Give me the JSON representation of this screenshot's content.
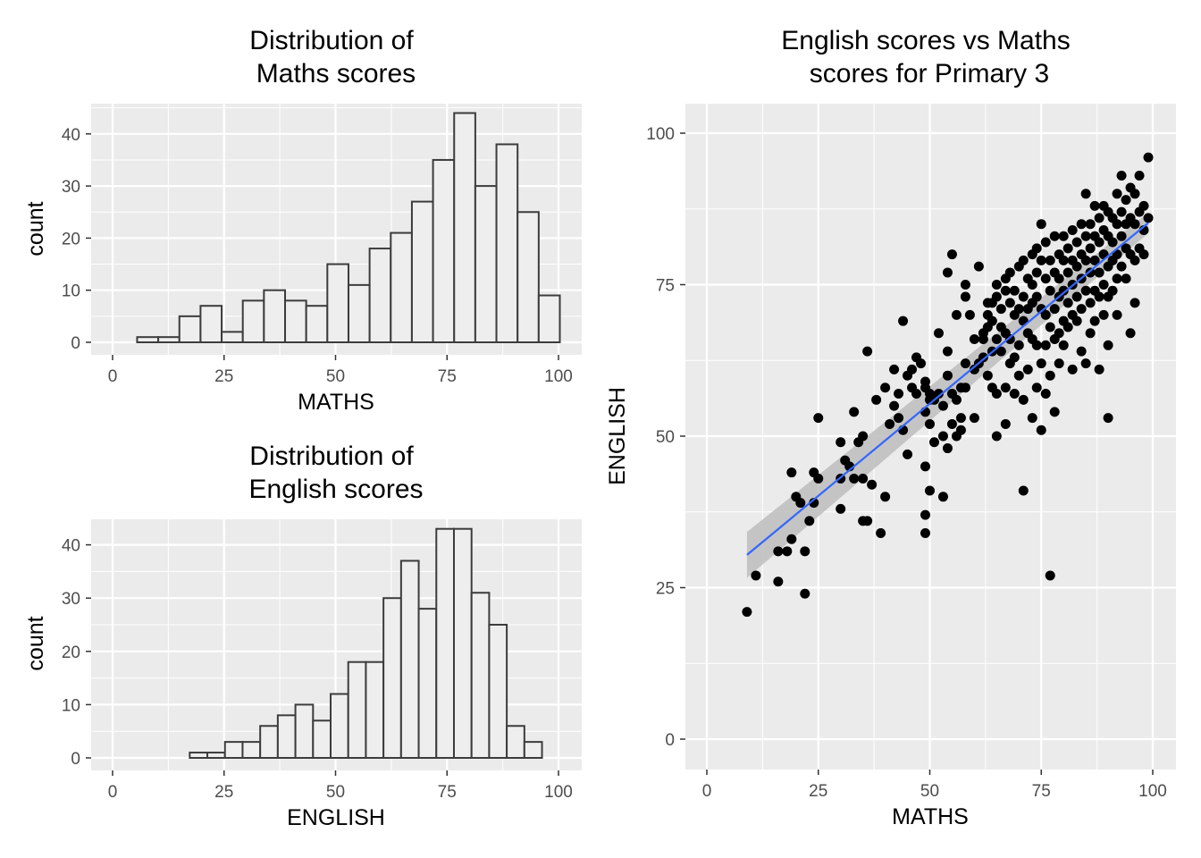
{
  "chart_data": [
    {
      "id": "maths-hist",
      "type": "bar",
      "title": [
        "Distribution of",
        "Maths scores"
      ],
      "xlabel": "MATHS",
      "ylabel": "count",
      "xlim": [
        0,
        100
      ],
      "ylim": [
        0,
        45
      ],
      "xticks": [
        0,
        25,
        50,
        75,
        100
      ],
      "yticks": [
        0,
        10,
        20,
        30,
        40
      ],
      "bin_width": 4.74,
      "bin_start": 5.5,
      "values": [
        1,
        1,
        5,
        7,
        2,
        8,
        10,
        8,
        7,
        15,
        11,
        18,
        21,
        27,
        35,
        44,
        30,
        38,
        25,
        9
      ],
      "fill": "#eeeeee",
      "stroke": "#3c3c3c"
    },
    {
      "id": "english-hist",
      "type": "bar",
      "title": [
        "Distribution of",
        "English scores"
      ],
      "xlabel": "ENGLISH",
      "ylabel": "count",
      "xlim": [
        0,
        100
      ],
      "ylim": [
        0,
        45
      ],
      "xticks": [
        0,
        25,
        50,
        75,
        100
      ],
      "yticks": [
        0,
        10,
        20,
        30,
        40
      ],
      "bin_width": 3.95,
      "bin_start": 17.3,
      "values": [
        1,
        1,
        3,
        3,
        6,
        8,
        10,
        7,
        12,
        18,
        18,
        30,
        37,
        28,
        43,
        43,
        31,
        25,
        6,
        3
      ],
      "fill": "#eeeeee",
      "stroke": "#3c3c3c"
    },
    {
      "id": "scatter",
      "type": "scatter",
      "title": [
        "English scores vs Maths",
        "scores for Primary 3"
      ],
      "xlabel": "MATHS",
      "ylabel": "ENGLISH",
      "xlim": [
        0,
        100
      ],
      "ylim": [
        0,
        100
      ],
      "xticks": [
        0,
        25,
        50,
        75,
        100
      ],
      "yticks": [
        0,
        25,
        50,
        75,
        100
      ],
      "point_color": "#000000",
      "trend": {
        "x": [
          9,
          99
        ],
        "y": [
          30.4,
          85.2
        ],
        "se_low": [
          26.6,
          83.5
        ],
        "se_high": [
          34.2,
          86.9
        ],
        "color": "#3366ff",
        "band": "#bdbdbd"
      },
      "points": [
        [
          9,
          21
        ],
        [
          11,
          27
        ],
        [
          16,
          26
        ],
        [
          16,
          31
        ],
        [
          18,
          31
        ],
        [
          19,
          44
        ],
        [
          20,
          40
        ],
        [
          21,
          39
        ],
        [
          19,
          33
        ],
        [
          22,
          24
        ],
        [
          22,
          31
        ],
        [
          23,
          36
        ],
        [
          24,
          39
        ],
        [
          24,
          44
        ],
        [
          25,
          43
        ],
        [
          25,
          53
        ],
        [
          30,
          49
        ],
        [
          30,
          43
        ],
        [
          30,
          38
        ],
        [
          31,
          46
        ],
        [
          32,
          45
        ],
        [
          33,
          43
        ],
        [
          33,
          54
        ],
        [
          34,
          49
        ],
        [
          35,
          50
        ],
        [
          35,
          43
        ],
        [
          35,
          36
        ],
        [
          36,
          36
        ],
        [
          36,
          64
        ],
        [
          37,
          42
        ],
        [
          38,
          56
        ],
        [
          39,
          34
        ],
        [
          40,
          40
        ],
        [
          40,
          58
        ],
        [
          41,
          52
        ],
        [
          42,
          55
        ],
        [
          42,
          61
        ],
        [
          43,
          53
        ],
        [
          43,
          57
        ],
        [
          44,
          69
        ],
        [
          44,
          51
        ],
        [
          45,
          47
        ],
        [
          45,
          60
        ],
        [
          46,
          58
        ],
        [
          46,
          61
        ],
        [
          47,
          57
        ],
        [
          47,
          63
        ],
        [
          48,
          62
        ],
        [
          49,
          59
        ],
        [
          49,
          54
        ],
        [
          49,
          58
        ],
        [
          50,
          57
        ],
        [
          50,
          52
        ],
        [
          50,
          56
        ],
        [
          49,
          45
        ],
        [
          49,
          37
        ],
        [
          50,
          41
        ],
        [
          49,
          34
        ],
        [
          51,
          56
        ],
        [
          51,
          49
        ],
        [
          52,
          57
        ],
        [
          52,
          67
        ],
        [
          53,
          50
        ],
        [
          53,
          40
        ],
        [
          53,
          55
        ],
        [
          54,
          77
        ],
        [
          54,
          64
        ],
        [
          54,
          60
        ],
        [
          54,
          48
        ],
        [
          55,
          57
        ],
        [
          55,
          52
        ],
        [
          55,
          80
        ],
        [
          56,
          70
        ],
        [
          56,
          56
        ],
        [
          56,
          50
        ],
        [
          57,
          58
        ],
        [
          57,
          53
        ],
        [
          57,
          51
        ],
        [
          58,
          75
        ],
        [
          58,
          62
        ],
        [
          58,
          58
        ],
        [
          58,
          73
        ],
        [
          59,
          70
        ],
        [
          60,
          66
        ],
        [
          60,
          61
        ],
        [
          60,
          53
        ],
        [
          61,
          62
        ],
        [
          61,
          78
        ],
        [
          62,
          67
        ],
        [
          62,
          66
        ],
        [
          62,
          63
        ],
        [
          63,
          68
        ],
        [
          63,
          72
        ],
        [
          63,
          70
        ],
        [
          63,
          60
        ],
        [
          64,
          72
        ],
        [
          64,
          69
        ],
        [
          64,
          64
        ],
        [
          64,
          58
        ],
        [
          65,
          75
        ],
        [
          65,
          73
        ],
        [
          65,
          66
        ],
        [
          65,
          57
        ],
        [
          65,
          50
        ],
        [
          66,
          71
        ],
        [
          66,
          68
        ],
        [
          66,
          64
        ],
        [
          67,
          76
        ],
        [
          67,
          74
        ],
        [
          67,
          67
        ],
        [
          67,
          58
        ],
        [
          67,
          52
        ],
        [
          68,
          77
        ],
        [
          68,
          72
        ],
        [
          68,
          66
        ],
        [
          68,
          62
        ],
        [
          69,
          74
        ],
        [
          69,
          70
        ],
        [
          69,
          63
        ],
        [
          69,
          57
        ],
        [
          70,
          78
        ],
        [
          70,
          71
        ],
        [
          70,
          65
        ],
        [
          70,
          60
        ],
        [
          71,
          79
        ],
        [
          71,
          73
        ],
        [
          71,
          69
        ],
        [
          71,
          41
        ],
        [
          71,
          56
        ],
        [
          72,
          76
        ],
        [
          72,
          71
        ],
        [
          72,
          67
        ],
        [
          72,
          61
        ],
        [
          73,
          80
        ],
        [
          73,
          75
        ],
        [
          73,
          72
        ],
        [
          73,
          66
        ],
        [
          73,
          53
        ],
        [
          74,
          81
        ],
        [
          74,
          77
        ],
        [
          74,
          73
        ],
        [
          74,
          65
        ],
        [
          74,
          58
        ],
        [
          75,
          85
        ],
        [
          75,
          79
        ],
        [
          75,
          71
        ],
        [
          75,
          62
        ],
        [
          75,
          51
        ],
        [
          76,
          82
        ],
        [
          76,
          76
        ],
        [
          76,
          70
        ],
        [
          76,
          65
        ],
        [
          76,
          57
        ],
        [
          77,
          79
        ],
        [
          77,
          74
        ],
        [
          77,
          68
        ],
        [
          77,
          60
        ],
        [
          77,
          27
        ],
        [
          78,
          83
        ],
        [
          78,
          77
        ],
        [
          78,
          71
        ],
        [
          78,
          66
        ],
        [
          78,
          54
        ],
        [
          79,
          80
        ],
        [
          79,
          76
        ],
        [
          79,
          73
        ],
        [
          79,
          67
        ],
        [
          79,
          62
        ],
        [
          80,
          83
        ],
        [
          80,
          79
        ],
        [
          80,
          74
        ],
        [
          80,
          69
        ],
        [
          80,
          65
        ],
        [
          81,
          81
        ],
        [
          81,
          77
        ],
        [
          81,
          72
        ],
        [
          81,
          68
        ],
        [
          82,
          84
        ],
        [
          82,
          79
        ],
        [
          82,
          75
        ],
        [
          82,
          70
        ],
        [
          82,
          61
        ],
        [
          83,
          82
        ],
        [
          83,
          78
        ],
        [
          83,
          73
        ],
        [
          83,
          69
        ],
        [
          84,
          85
        ],
        [
          84,
          80
        ],
        [
          84,
          76
        ],
        [
          84,
          71
        ],
        [
          84,
          64
        ],
        [
          85,
          90
        ],
        [
          85,
          83
        ],
        [
          85,
          79
        ],
        [
          85,
          74
        ],
        [
          85,
          62
        ],
        [
          86,
          85
        ],
        [
          86,
          81
        ],
        [
          86,
          77
        ],
        [
          86,
          72
        ],
        [
          86,
          67
        ],
        [
          87,
          88
        ],
        [
          87,
          83
        ],
        [
          87,
          79
        ],
        [
          87,
          74
        ],
        [
          87,
          69
        ],
        [
          88,
          86
        ],
        [
          88,
          82
        ],
        [
          88,
          77
        ],
        [
          88,
          73
        ],
        [
          88,
          61
        ],
        [
          89,
          88
        ],
        [
          89,
          84
        ],
        [
          89,
          80
        ],
        [
          89,
          75
        ],
        [
          89,
          70
        ],
        [
          90,
          87
        ],
        [
          90,
          83
        ],
        [
          90,
          78
        ],
        [
          90,
          73
        ],
        [
          90,
          65
        ],
        [
          90,
          53
        ],
        [
          91,
          86
        ],
        [
          91,
          82
        ],
        [
          91,
          79
        ],
        [
          91,
          74
        ],
        [
          92,
          90
        ],
        [
          92,
          85
        ],
        [
          92,
          80
        ],
        [
          92,
          76
        ],
        [
          92,
          70
        ],
        [
          93,
          93
        ],
        [
          93,
          87
        ],
        [
          93,
          83
        ],
        [
          93,
          78
        ],
        [
          94,
          89
        ],
        [
          94,
          85
        ],
        [
          94,
          81
        ],
        [
          94,
          76
        ],
        [
          95,
          91
        ],
        [
          95,
          86
        ],
        [
          95,
          80
        ],
        [
          95,
          67
        ],
        [
          96,
          90
        ],
        [
          96,
          85
        ],
        [
          96,
          79
        ],
        [
          96,
          72
        ],
        [
          97,
          93
        ],
        [
          97,
          87
        ],
        [
          97,
          81
        ],
        [
          98,
          88
        ],
        [
          98,
          84
        ],
        [
          98,
          80
        ],
        [
          99,
          96
        ],
        [
          99,
          86
        ]
      ]
    }
  ]
}
